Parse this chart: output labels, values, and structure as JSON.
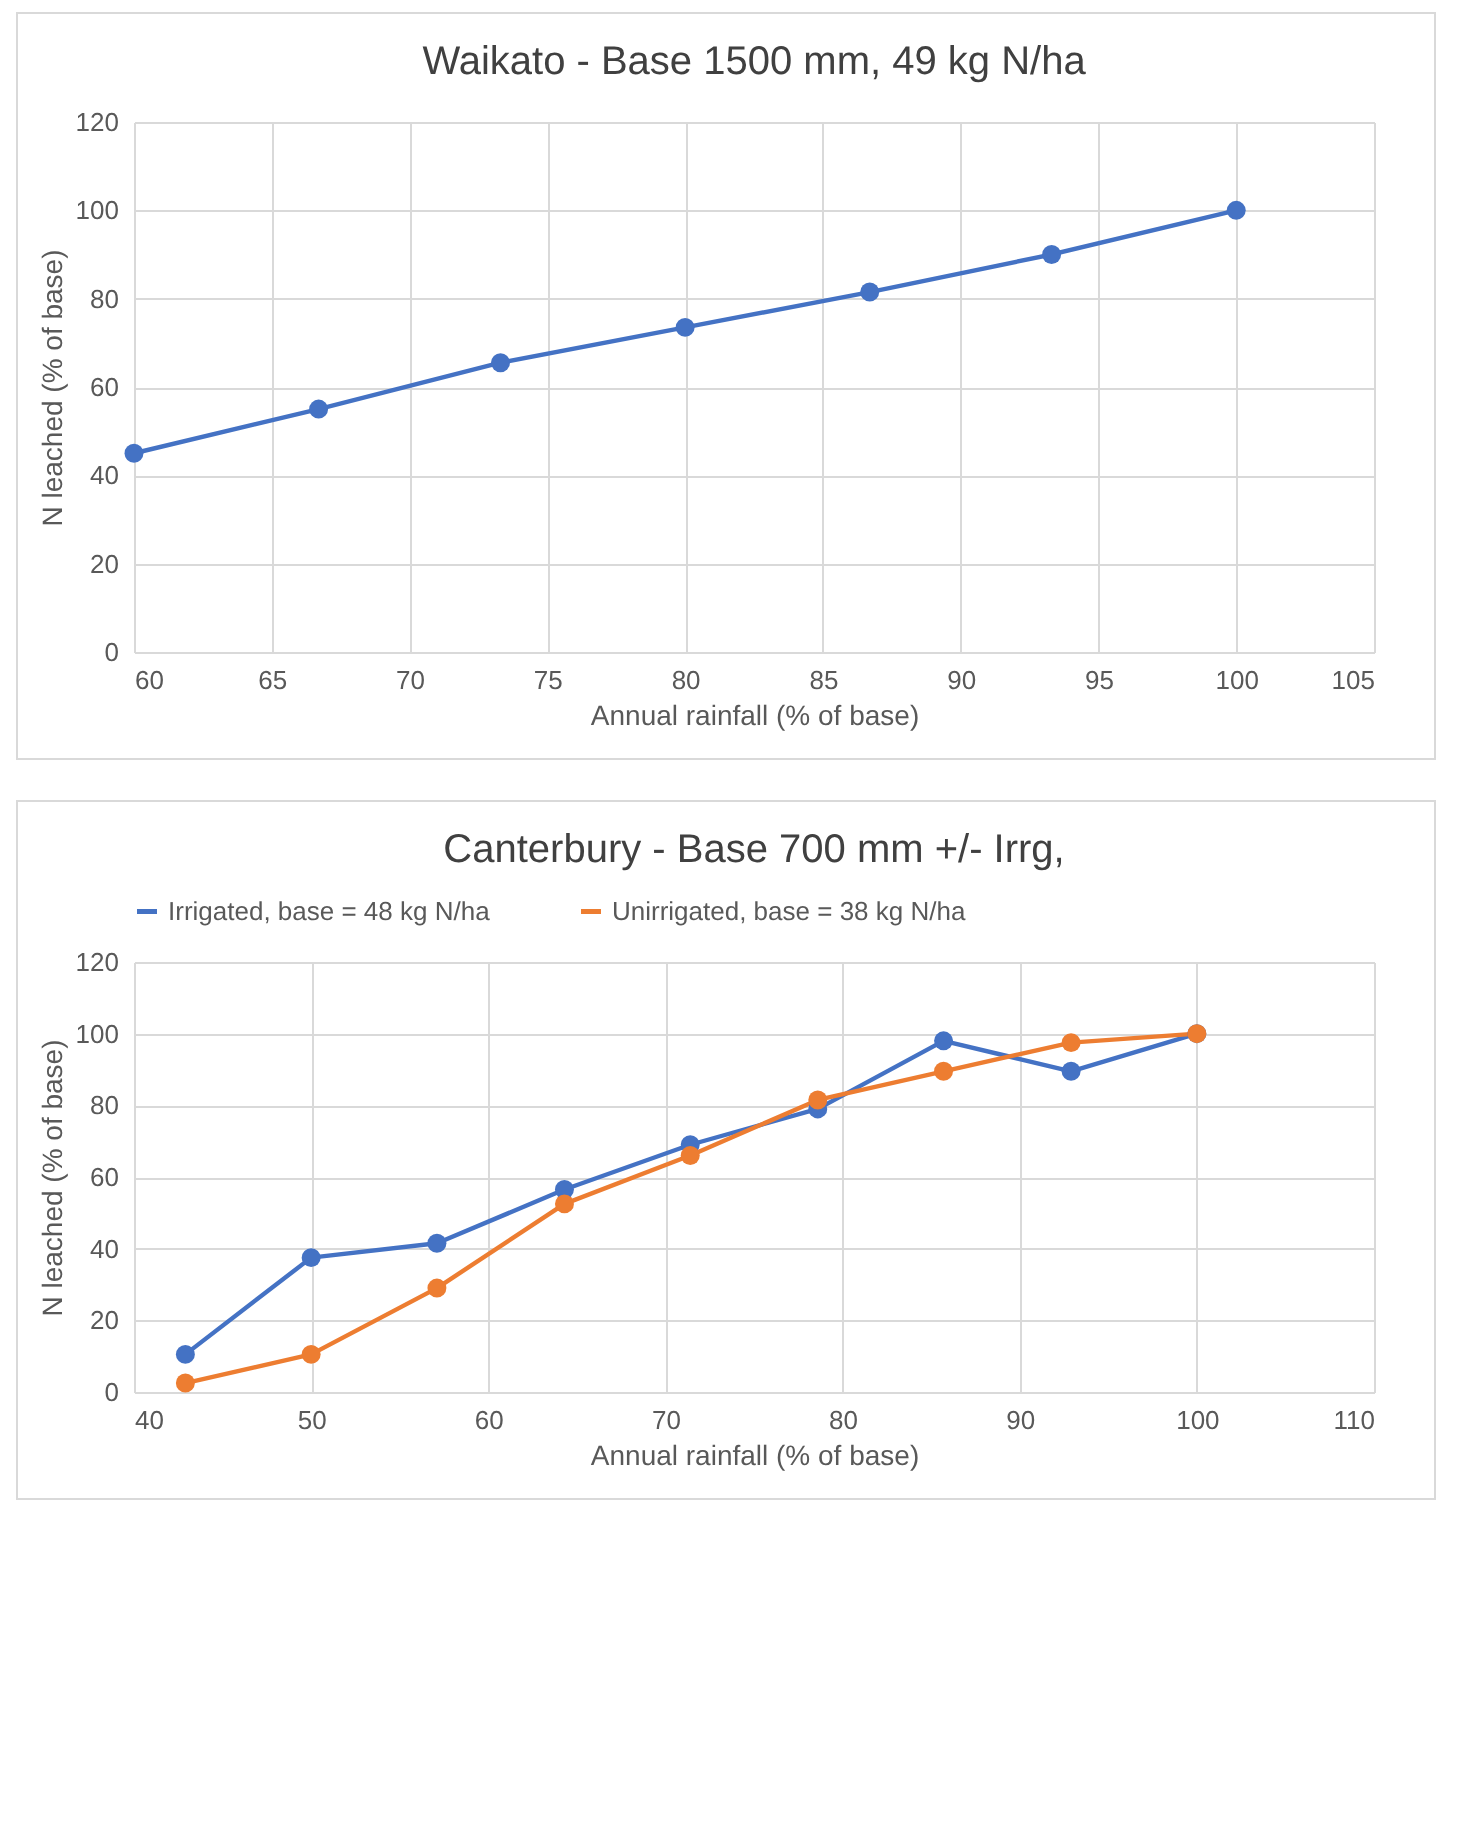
{
  "chart_data": [
    {
      "type": "line",
      "title": "Waikato - Base 1500 mm, 49 kg N/ha",
      "xlabel": "Annual rainfall (% of base)",
      "ylabel": "N leached (% of base)",
      "x": [
        60,
        66.7,
        73.3,
        80,
        86.7,
        93.3,
        100
      ],
      "series": [
        {
          "color": "#4472c4",
          "values": [
            45,
            55,
            65.5,
            73.5,
            81.5,
            90,
            100
          ]
        }
      ],
      "xlim": [
        60,
        105
      ],
      "xticks": [
        60,
        65,
        70,
        75,
        80,
        85,
        90,
        95,
        100,
        105
      ],
      "ylim": [
        0,
        120
      ],
      "yticks": [
        0,
        20,
        40,
        60,
        80,
        100,
        120
      ],
      "grid": true,
      "marker": "circle"
    },
    {
      "type": "line",
      "title": "Canterbury - Base 700 mm +/- Irrg,",
      "xlabel": "Annual rainfall (% of base)",
      "ylabel": "N leached (% of base)",
      "x": [
        42.9,
        50,
        57.1,
        64.3,
        71.4,
        78.6,
        85.7,
        92.9,
        100
      ],
      "series": [
        {
          "name": "Irrigated, base = 48 kg N/ha",
          "color": "#4472c4",
          "values": [
            10.5,
            37.5,
            41.5,
            56.5,
            69,
            79,
            98,
            89.5,
            100
          ]
        },
        {
          "name": "Unirrigated, base = 38 kg N/ha",
          "color": "#ed7d31",
          "values": [
            2.5,
            10.5,
            29,
            52.5,
            66,
            81.5,
            89.5,
            97.5,
            100
          ]
        }
      ],
      "xlim": [
        40,
        110
      ],
      "xticks": [
        40,
        50,
        60,
        70,
        80,
        90,
        100,
        110
      ],
      "ylim": [
        0,
        120
      ],
      "yticks": [
        0,
        20,
        40,
        60,
        80,
        100,
        120
      ],
      "grid": true,
      "legend": "top",
      "marker": "circle"
    }
  ]
}
